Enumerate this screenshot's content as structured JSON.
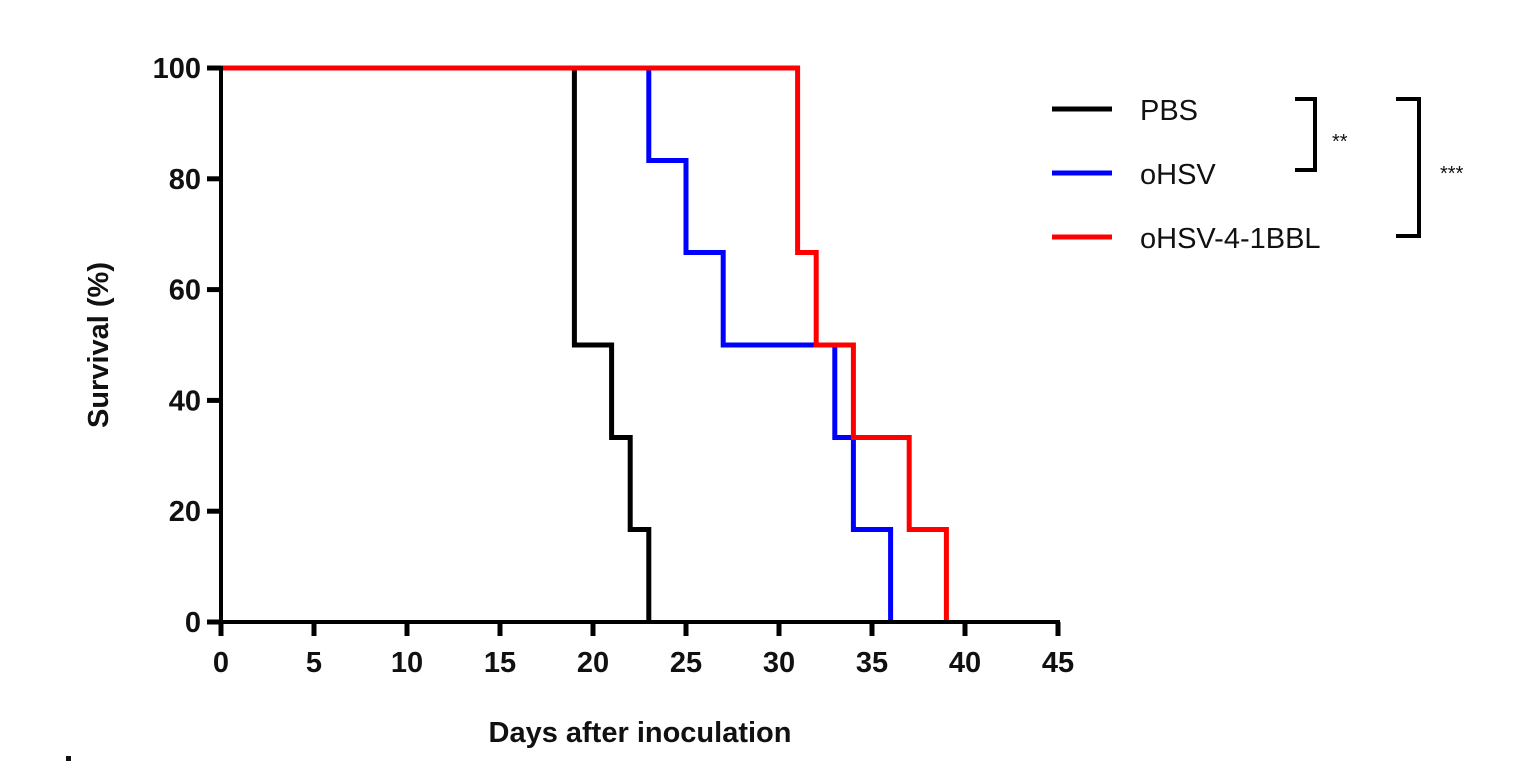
{
  "chart_data": {
    "type": "line",
    "subtype": "kaplan-meier-step",
    "xlabel": "Days after inoculation",
    "ylabel": "Survival (%)",
    "xlim": [
      0,
      45
    ],
    "ylim": [
      0,
      100
    ],
    "xticks": [
      0,
      5,
      10,
      15,
      20,
      25,
      30,
      35,
      40,
      45
    ],
    "yticks": [
      0,
      20,
      40,
      60,
      80,
      100
    ],
    "grid": false,
    "legend_position": "top-right",
    "series": [
      {
        "name": "PBS",
        "color": "#000000",
        "x": [
          0,
          19,
          21,
          22,
          23
        ],
        "y": [
          100,
          50,
          33.3,
          16.7,
          0
        ]
      },
      {
        "name": "oHSV",
        "color": "#0000ff",
        "x": [
          0,
          23,
          25,
          27,
          33,
          34,
          36
        ],
        "y": [
          100,
          83.3,
          66.7,
          50,
          33.3,
          16.7,
          0
        ]
      },
      {
        "name": "oHSV-4-1BBL",
        "color": "#ff0000",
        "x": [
          0,
          31,
          32,
          34,
          37,
          39
        ],
        "y": [
          100,
          66.7,
          50,
          33.3,
          16.7,
          0
        ]
      }
    ],
    "annotations": [
      {
        "text": "**",
        "between": [
          "PBS",
          "oHSV"
        ]
      },
      {
        "text": "***",
        "between": [
          "PBS",
          "oHSV-4-1BBL"
        ]
      }
    ]
  }
}
